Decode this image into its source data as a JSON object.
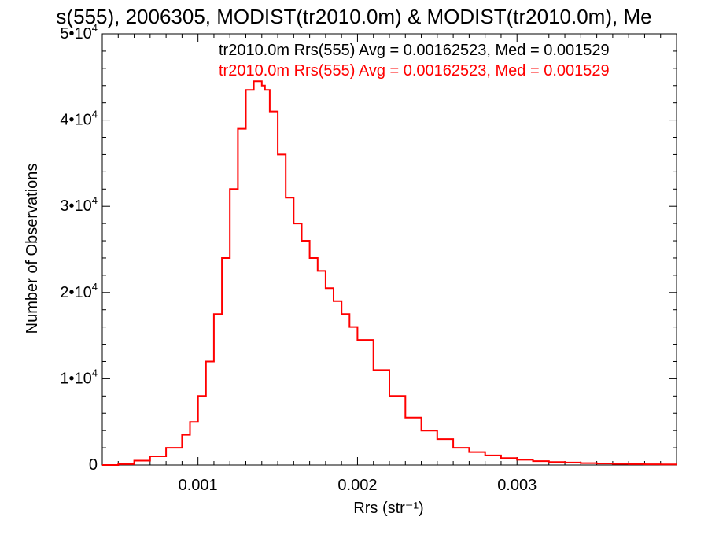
{
  "chart_data": {
    "type": "histogram-step",
    "title": "s(555), 2006305, MODIST(tr2010.0m) & MODIST(tr2010.0m), Me",
    "xlabel": "Rrs (str⁻¹)",
    "ylabel": "Number of Observations",
    "xlim": [
      0.0004,
      0.004
    ],
    "ylim": [
      0,
      50000
    ],
    "x_ticks": [
      {
        "value": 0.001,
        "label": "0.001"
      },
      {
        "value": 0.002,
        "label": "0.002"
      },
      {
        "value": 0.003,
        "label": "0.003"
      }
    ],
    "y_ticks": [
      {
        "value": 0,
        "mantissa": "0",
        "exponent": ""
      },
      {
        "value": 10000,
        "mantissa": "1•10",
        "exponent": "4"
      },
      {
        "value": 20000,
        "mantissa": "2•10",
        "exponent": "4"
      },
      {
        "value": 30000,
        "mantissa": "3•10",
        "exponent": "4"
      },
      {
        "value": 40000,
        "mantissa": "4•10",
        "exponent": "4"
      },
      {
        "value": 50000,
        "mantissa": "5•10",
        "exponent": "4"
      }
    ],
    "annotations": [
      {
        "text": "tr2010.0m Rrs(555) Avg = 0.00162523, Med = 0.001529",
        "color": "#000000"
      },
      {
        "text": "tr2010.0m Rrs(555) Avg = 0.00162523, Med = 0.001529",
        "color": "#ff0000"
      }
    ],
    "series": [
      {
        "color": "#ff0000",
        "x": [
          0.0004,
          0.0005,
          0.0006,
          0.0007,
          0.0008,
          0.0009,
          0.00095,
          0.001,
          0.00105,
          0.0011,
          0.00115,
          0.0012,
          0.00125,
          0.0013,
          0.00135,
          0.0014,
          0.00142,
          0.00145,
          0.0015,
          0.00155,
          0.0016,
          0.00165,
          0.0017,
          0.00175,
          0.0018,
          0.00185,
          0.0019,
          0.00195,
          0.002,
          0.0021,
          0.0022,
          0.0023,
          0.0024,
          0.0025,
          0.0026,
          0.0027,
          0.0028,
          0.0029,
          0.003,
          0.0031,
          0.0032,
          0.0033,
          0.0034,
          0.0035,
          0.0036,
          0.0037,
          0.0038,
          0.0039,
          0.004
        ],
        "y": [
          0,
          100,
          500,
          1000,
          2000,
          3500,
          5000,
          8000,
          12000,
          17500,
          24000,
          32000,
          39000,
          43500,
          44500,
          44000,
          43500,
          41000,
          36000,
          31000,
          28000,
          26000,
          24000,
          22500,
          20500,
          19000,
          17500,
          16000,
          14500,
          11000,
          8000,
          5500,
          4000,
          3000,
          2000,
          1500,
          1100,
          800,
          600,
          450,
          350,
          280,
          220,
          170,
          130,
          100,
          80,
          60,
          40
        ]
      }
    ]
  }
}
